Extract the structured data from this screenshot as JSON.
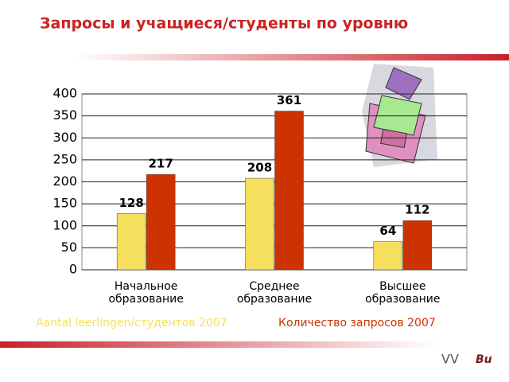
{
  "chart_data": {
    "type": "bar",
    "title": "Запросы и учащиеся/студенты по уровню",
    "categories": [
      "Начальное образование",
      "Среднее образование",
      "Высшее образование"
    ],
    "series": [
      {
        "name": "Aantal leerlingen/студентов 2007",
        "color": "#f7df5e",
        "values": [
          128,
          208,
          64
        ]
      },
      {
        "name": "Количество запросов 2007",
        "color": "#cc3300",
        "values": [
          217,
          361,
          112
        ]
      }
    ],
    "ylim": [
      0,
      400
    ],
    "yticks": [
      0,
      50,
      100,
      150,
      200,
      250,
      300,
      350,
      400
    ],
    "grid": true
  },
  "logo": {
    "left": "VV",
    "right": "Bu"
  }
}
